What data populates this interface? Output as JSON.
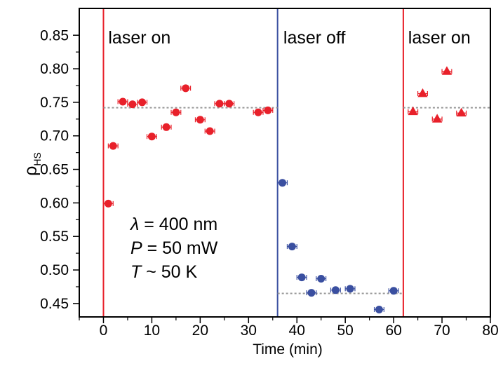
{
  "chart_data": {
    "type": "scatter",
    "xlabel": "Time (min)",
    "ylabel": "ρ",
    "ylabel_sub": "HS",
    "xlim": [
      -5,
      80
    ],
    "ylim": [
      0.43,
      0.89
    ],
    "xticks": [
      0,
      10,
      20,
      30,
      40,
      50,
      60,
      70,
      80
    ],
    "xtick_labels": [
      "0",
      "10",
      "20",
      "30",
      "40",
      "50",
      "60",
      "70",
      "80"
    ],
    "yticks": [
      0.45,
      0.5,
      0.55,
      0.6,
      0.65,
      0.7,
      0.75,
      0.8,
      0.85
    ],
    "ytick_labels": [
      "0.45",
      "0.50",
      "0.55",
      "0.60",
      "0.65",
      "0.70",
      "0.75",
      "0.80",
      "0.85"
    ],
    "grid": false,
    "vlines": [
      {
        "x": 0,
        "color": "#e8202a"
      },
      {
        "x": 36,
        "color": "#3a4fa0"
      },
      {
        "x": 62,
        "color": "#e8202a"
      }
    ],
    "region_labels": [
      {
        "text": "laser on",
        "x": 1
      },
      {
        "text": "laser off",
        "x": 37.2
      },
      {
        "text": "laser on",
        "x": 63
      }
    ],
    "hlines": [
      {
        "y": 0.742,
        "x_start": 0,
        "x_end": 36
      },
      {
        "y": 0.465,
        "x_start": 36,
        "x_end": 62
      },
      {
        "y": 0.742,
        "x_start": 62,
        "x_end": 80
      }
    ],
    "series": [
      {
        "marker": "circle",
        "color": "#e8202a",
        "points": [
          {
            "x": 1,
            "y": 0.599,
            "xerr": 1
          },
          {
            "x": 2,
            "y": 0.685,
            "xerr": 1
          },
          {
            "x": 4,
            "y": 0.751,
            "xerr": 1
          },
          {
            "x": 6,
            "y": 0.747,
            "xerr": 1
          },
          {
            "x": 8,
            "y": 0.75,
            "xerr": 1
          },
          {
            "x": 10,
            "y": 0.699,
            "xerr": 1
          },
          {
            "x": 13,
            "y": 0.713,
            "xerr": 1
          },
          {
            "x": 15,
            "y": 0.735,
            "xerr": 1
          },
          {
            "x": 17,
            "y": 0.771,
            "xerr": 1
          },
          {
            "x": 20,
            "y": 0.724,
            "xerr": 1
          },
          {
            "x": 22,
            "y": 0.707,
            "xerr": 1
          },
          {
            "x": 24,
            "y": 0.748,
            "xerr": 1
          },
          {
            "x": 26,
            "y": 0.748,
            "xerr": 1
          },
          {
            "x": 32,
            "y": 0.735,
            "xerr": 1
          },
          {
            "x": 34,
            "y": 0.738,
            "xerr": 1
          }
        ]
      },
      {
        "marker": "circle",
        "color": "#3a4fa0",
        "points": [
          {
            "x": 37,
            "y": 0.63,
            "xerr": 1
          },
          {
            "x": 39,
            "y": 0.535,
            "xerr": 1
          },
          {
            "x": 41,
            "y": 0.489,
            "xerr": 1
          },
          {
            "x": 43,
            "y": 0.466,
            "xerr": 1
          },
          {
            "x": 45,
            "y": 0.487,
            "xerr": 1
          },
          {
            "x": 48,
            "y": 0.47,
            "xerr": 1
          },
          {
            "x": 51,
            "y": 0.472,
            "xerr": 1
          },
          {
            "x": 57,
            "y": 0.441,
            "xerr": 1
          },
          {
            "x": 60,
            "y": 0.469,
            "xerr": 1
          }
        ]
      },
      {
        "marker": "triangle",
        "color": "#e8202a",
        "points": [
          {
            "x": 64,
            "y": 0.736,
            "xerr": 1
          },
          {
            "x": 66,
            "y": 0.763,
            "xerr": 1
          },
          {
            "x": 69,
            "y": 0.725,
            "xerr": 1
          },
          {
            "x": 71,
            "y": 0.796,
            "xerr": 1
          },
          {
            "x": 74,
            "y": 0.734,
            "xerr": 1
          }
        ]
      }
    ],
    "annotations": [
      {
        "symbol": "λ",
        "text": " = 400 nm"
      },
      {
        "symbol": "P",
        "text": " = 50 mW"
      },
      {
        "symbol": "T",
        "text": " ~ 50 K"
      }
    ],
    "hline_color": "#999999"
  }
}
